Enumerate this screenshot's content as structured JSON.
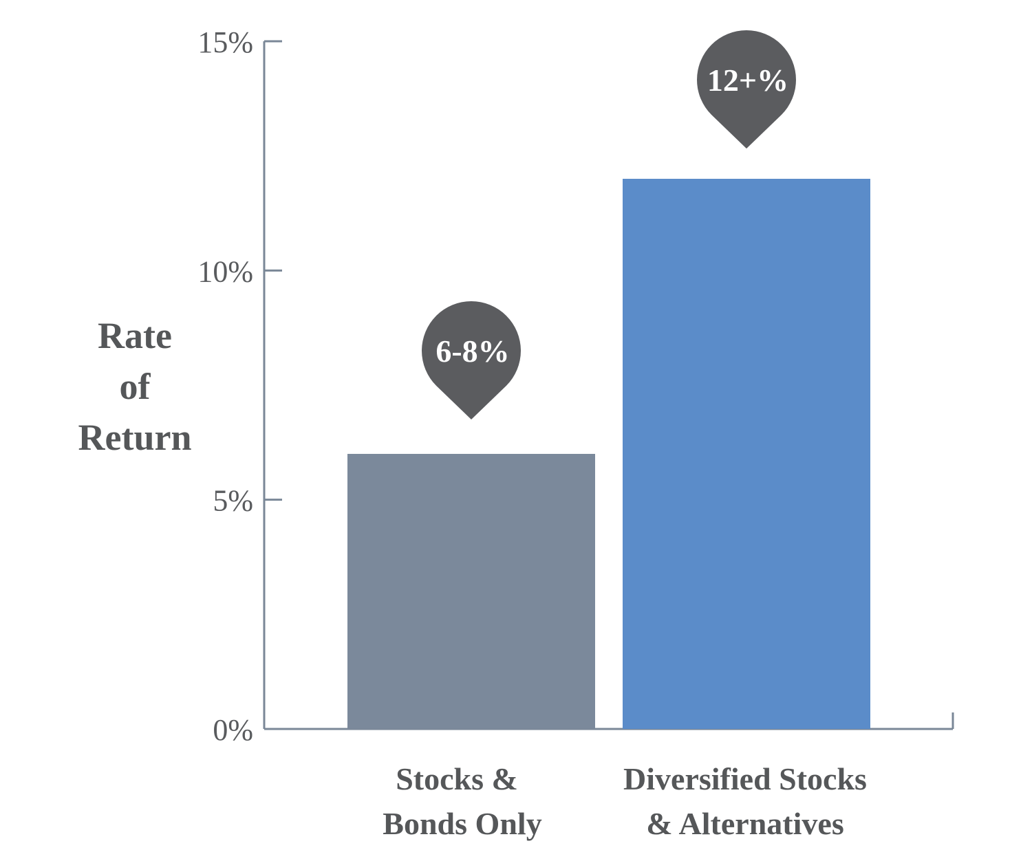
{
  "chart_data": {
    "type": "bar",
    "ylabel_lines": [
      "Rate",
      "of",
      "Return"
    ],
    "xlabel": "",
    "ylim": [
      0,
      15
    ],
    "yticks": [
      {
        "value": 0,
        "label": "0%"
      },
      {
        "value": 5,
        "label": "5%"
      },
      {
        "value": 10,
        "label": "10%"
      },
      {
        "value": 15,
        "label": "15%"
      }
    ],
    "categories": [
      {
        "lines": [
          "Stocks &",
          "Bonds Only"
        ]
      },
      {
        "lines": [
          "Diversified Stocks",
          "& Alternatives"
        ]
      }
    ],
    "values": [
      6,
      12
    ],
    "data_labels": [
      "6-8%",
      "12+%"
    ],
    "colors": [
      "#7b899b",
      "#5b8cc9"
    ],
    "pin_color": "#5b5c5f",
    "axis_color": "#7a8797",
    "grid": false,
    "legend": "none"
  }
}
